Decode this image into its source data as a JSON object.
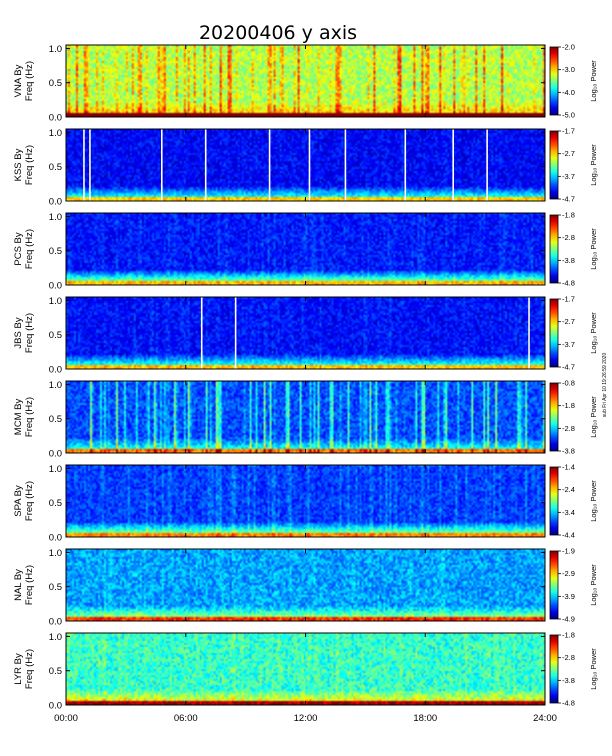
{
  "chart_data": {
    "type": "heatmap",
    "title": "20200406 y axis",
    "x_ticks": [
      "00:00",
      "06:00",
      "12:00",
      "18:00",
      "24:00"
    ],
    "xlim_hours": [
      0,
      24
    ],
    "y_ticks": [
      "0.0",
      "0.5",
      "1.0"
    ],
    "ylim_hz": [
      0,
      1.05
    ],
    "colorbar_label": "Log₁₀ Power",
    "side_note": "sub Fri Apr 10 19:26:59 2020",
    "panels": [
      {
        "ylabel1": "VNA By",
        "ylabel2": "Freq (Hz)",
        "cb_ticks": [
          "-2.0",
          "-3.0",
          "-4.0",
          "-5.0"
        ],
        "base": 0.55,
        "noise": 0.1,
        "stripes": 0.25,
        "lowband": 0.15,
        "gaps": []
      },
      {
        "ylabel1": "KSS By",
        "ylabel2": "Freq (Hz)",
        "cb_ticks": [
          "-1.7",
          "-2.7",
          "-3.7",
          "-4.7"
        ],
        "base": 0.12,
        "noise": 0.07,
        "stripes": 0.03,
        "lowband": 0.35,
        "gaps": [
          0.9,
          1.2,
          4.8,
          7.0,
          10.2,
          12.2,
          14.0,
          17.0,
          19.4,
          21.1
        ]
      },
      {
        "ylabel1": "PCS By",
        "ylabel2": "Freq (Hz)",
        "cb_ticks": [
          "-1.8",
          "-2.8",
          "-3.8",
          "-4.8"
        ],
        "base": 0.14,
        "noise": 0.07,
        "stripes": 0.05,
        "lowband": 0.45,
        "gaps": []
      },
      {
        "ylabel1": "JBS By",
        "ylabel2": "Freq (Hz)",
        "cb_ticks": [
          "-1.7",
          "-2.7",
          "-3.7",
          "-4.7"
        ],
        "base": 0.13,
        "noise": 0.07,
        "stripes": 0.04,
        "lowband": 0.35,
        "gaps": [
          6.8,
          8.5,
          23.2
        ]
      },
      {
        "ylabel1": "MCM By",
        "ylabel2": "Freq (Hz)",
        "cb_ticks": [
          "-0.8",
          "-1.8",
          "-2.8",
          "-3.8"
        ],
        "base": 0.2,
        "noise": 0.08,
        "stripes": 0.3,
        "lowband": 0.25,
        "gaps": []
      },
      {
        "ylabel1": "SPA By",
        "ylabel2": "Freq (Hz)",
        "cb_ticks": [
          "-1.4",
          "-2.4",
          "-3.4",
          "-4.4"
        ],
        "base": 0.18,
        "noise": 0.07,
        "stripes": 0.08,
        "lowband": 0.4,
        "gaps": []
      },
      {
        "ylabel1": "NAL By",
        "ylabel2": "Freq (Hz)",
        "cb_ticks": [
          "-1.9",
          "-2.9",
          "-3.9",
          "-4.9"
        ],
        "base": 0.28,
        "noise": 0.09,
        "stripes": 0.04,
        "lowband": 0.3,
        "gaps": []
      },
      {
        "ylabel1": "LYR By",
        "ylabel2": "Freq (Hz)",
        "cb_ticks": [
          "-1.8",
          "-2.8",
          "-3.8",
          "-4.8"
        ],
        "base": 0.42,
        "noise": 0.1,
        "stripes": 0.05,
        "lowband": 0.25,
        "gaps": []
      }
    ]
  }
}
